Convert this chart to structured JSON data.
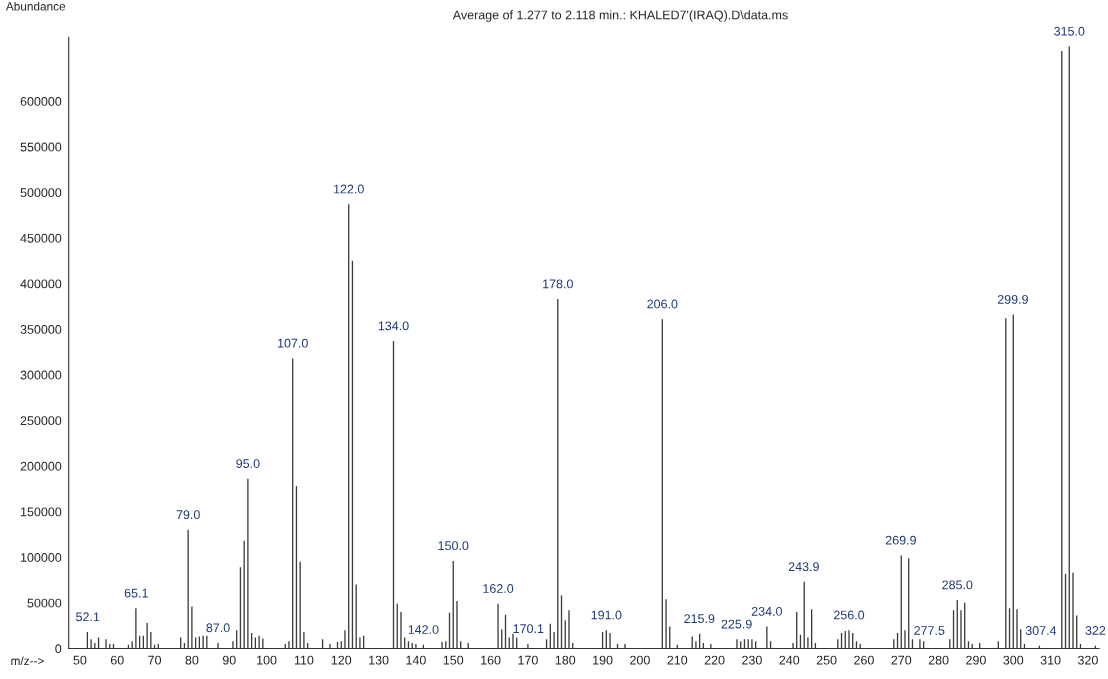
{
  "chart_data": {
    "type": "bar",
    "title": "Average of 1.277 to 2.118 min.: KHALED7'(IRAQ).D\\data.ms",
    "xlabel": "m/z-->",
    "ylabel": "Abundance",
    "x": [
      52,
      53,
      54,
      55,
      57,
      58,
      59,
      63,
      64,
      65,
      66,
      67,
      68,
      69,
      70,
      71,
      77,
      78,
      79,
      80,
      81,
      82,
      83,
      84,
      87,
      91,
      92,
      93,
      94,
      95,
      96,
      97,
      98,
      99,
      105,
      106,
      107,
      108,
      109,
      110,
      111,
      115,
      117,
      119,
      120,
      121,
      122,
      123,
      124,
      125,
      126,
      134,
      135,
      136,
      137,
      138,
      139,
      140,
      142,
      147,
      148,
      149,
      150,
      151,
      152,
      154,
      162,
      163,
      164,
      165,
      166,
      167,
      170,
      175,
      176,
      177,
      178,
      179,
      180,
      181,
      182,
      190,
      191,
      192,
      194,
      196,
      206,
      207,
      208,
      210,
      214,
      215,
      216,
      217,
      219,
      226,
      227,
      228,
      229,
      230,
      231,
      234,
      235,
      241,
      242,
      243,
      244,
      245,
      246,
      247,
      253,
      254,
      255,
      256,
      257,
      258,
      259,
      268,
      269,
      270,
      271,
      272,
      273,
      275,
      276,
      283,
      284,
      285,
      286,
      287,
      288,
      289,
      291,
      296,
      298,
      299,
      300,
      301,
      302,
      303,
      307,
      313,
      314,
      315,
      316,
      317,
      318,
      322
    ],
    "values": [
      18000,
      10000,
      6000,
      12000,
      10000,
      5000,
      5000,
      4000,
      8000,
      44000,
      14000,
      14000,
      28000,
      18000,
      4000,
      5000,
      12000,
      6000,
      130000,
      46000,
      12000,
      13000,
      14000,
      14000,
      6000,
      8000,
      20000,
      89000,
      118000,
      186000,
      17000,
      12000,
      14000,
      11000,
      5000,
      8000,
      318000,
      178000,
      95000,
      18000,
      6000,
      10000,
      5000,
      7000,
      8000,
      20000,
      487000,
      425000,
      70000,
      12000,
      14000,
      337000,
      49000,
      40000,
      12000,
      8000,
      6000,
      5000,
      4000,
      7000,
      8000,
      39000,
      96000,
      52000,
      8000,
      6000,
      49000,
      21000,
      37000,
      12000,
      16000,
      12000,
      5000,
      10000,
      27000,
      18000,
      383000,
      58000,
      31000,
      42000,
      6000,
      18000,
      20000,
      17000,
      5000,
      5000,
      361000,
      54000,
      24000,
      4000,
      13000,
      8000,
      16000,
      6000,
      5000,
      10000,
      8000,
      10000,
      10000,
      10000,
      8000,
      24000,
      8000,
      6000,
      40000,
      15000,
      73000,
      12000,
      43000,
      6000,
      10000,
      17000,
      19000,
      20000,
      17000,
      8000,
      5000,
      10000,
      17000,
      102000,
      20000,
      99000,
      10000,
      10000,
      8000,
      10000,
      42000,
      53000,
      42000,
      50000,
      8000,
      5000,
      6000,
      8000,
      362000,
      44000,
      366000,
      43000,
      21000,
      5000,
      3000,
      655000,
      82000,
      660000,
      83000,
      36000,
      5000,
      3000
    ],
    "color": "#3a3a3a",
    "xlim": [
      47,
      323
    ],
    "xticks": [
      50,
      60,
      70,
      80,
      90,
      100,
      110,
      120,
      130,
      140,
      150,
      160,
      170,
      180,
      190,
      200,
      210,
      220,
      230,
      240,
      250,
      260,
      270,
      280,
      290,
      300,
      310,
      320
    ],
    "ylim": [
      0,
      670000
    ],
    "yticks": [
      0,
      50000,
      100000,
      150000,
      200000,
      250000,
      300000,
      350000,
      400000,
      450000,
      500000,
      550000,
      600000
    ],
    "annotations": [
      {
        "text": "52.1",
        "x": 52.1,
        "y": 18000
      },
      {
        "text": "65.1",
        "x": 65.1,
        "y": 44000
      },
      {
        "text": "79.0",
        "x": 79.0,
        "y": 130000
      },
      {
        "text": "87.0",
        "x": 87.0,
        "y": 6000
      },
      {
        "text": "95.0",
        "x": 95.0,
        "y": 186000
      },
      {
        "text": "107.0",
        "x": 107.0,
        "y": 318000
      },
      {
        "text": "122.0",
        "x": 122.0,
        "y": 487000
      },
      {
        "text": "134.0",
        "x": 134.0,
        "y": 337000
      },
      {
        "text": "142.0",
        "x": 142.0,
        "y": 4000
      },
      {
        "text": "150.0",
        "x": 150.0,
        "y": 96000
      },
      {
        "text": "162.0",
        "x": 162.0,
        "y": 49000
      },
      {
        "text": "170.1",
        "x": 170.1,
        "y": 5000
      },
      {
        "text": "178.0",
        "x": 178.0,
        "y": 383000
      },
      {
        "text": "191.0",
        "x": 191.0,
        "y": 20000
      },
      {
        "text": "206.0",
        "x": 206.0,
        "y": 361000
      },
      {
        "text": "215.9",
        "x": 215.9,
        "y": 16000
      },
      {
        "text": "225.9",
        "x": 225.9,
        "y": 10000
      },
      {
        "text": "234.0",
        "x": 234.0,
        "y": 24000
      },
      {
        "text": "243.9",
        "x": 243.9,
        "y": 73000
      },
      {
        "text": "256.0",
        "x": 256.0,
        "y": 20000
      },
      {
        "text": "269.9",
        "x": 269.9,
        "y": 102000
      },
      {
        "text": "277.5",
        "x": 277.5,
        "y": 3000
      },
      {
        "text": "285.0",
        "x": 285.0,
        "y": 53000
      },
      {
        "text": "299.9",
        "x": 299.9,
        "y": 366000
      },
      {
        "text": "307.4",
        "x": 307.4,
        "y": 3000
      },
      {
        "text": "315.0",
        "x": 315.0,
        "y": 660000
      },
      {
        "text": "322",
        "x": 322,
        "y": 3000
      }
    ],
    "grid": false,
    "legend": false
  }
}
